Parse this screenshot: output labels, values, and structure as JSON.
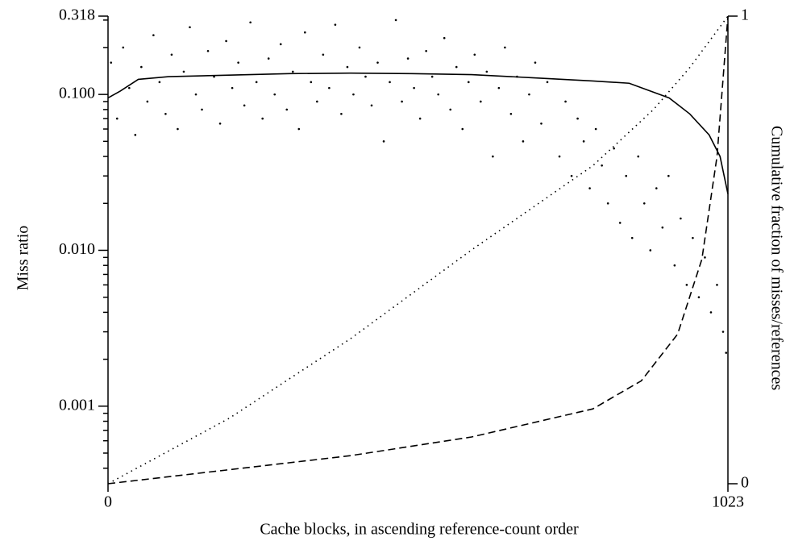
{
  "chart_data": {
    "type": "scatter",
    "xlabel": "Cache blocks, in ascending reference-count order",
    "ylabel": "Miss ratio",
    "y2label": "Cumulative fraction of misses/references",
    "xlim": [
      0,
      1023
    ],
    "xticks": [
      0,
      1023
    ],
    "ylim": [
      0.000318,
      0.318
    ],
    "yscale": "log",
    "yticks": [
      0.318,
      {
        "value": 0.1,
        "label": "0.100"
      },
      {
        "value": 0.01,
        "label": "0.010"
      },
      0.001
    ],
    "yminorticks": [
      0.3,
      0.2,
      0.09,
      0.08,
      0.07,
      0.06,
      0.05,
      0.04,
      0.03,
      0.02,
      0.009,
      0.008,
      0.007,
      0.006,
      0.005,
      0.004,
      0.003,
      0.002,
      0.0009,
      0.0008,
      0.0007,
      0.0006,
      0.0005,
      0.0004
    ],
    "y2lim": [
      0,
      1
    ],
    "y2ticks": [
      0,
      1
    ],
    "series": [
      {
        "type": "scatter",
        "color": "#000000",
        "x": [
          5,
          15,
          25,
          35,
          45,
          55,
          65,
          75,
          85,
          95,
          105,
          115,
          125,
          135,
          145,
          155,
          165,
          175,
          185,
          195,
          205,
          215,
          225,
          235,
          245,
          255,
          265,
          275,
          285,
          295,
          305,
          315,
          325,
          335,
          345,
          355,
          365,
          375,
          385,
          395,
          405,
          415,
          425,
          435,
          445,
          455,
          465,
          475,
          485,
          495,
          505,
          515,
          525,
          535,
          545,
          555,
          565,
          575,
          585,
          595,
          605,
          615,
          625,
          635,
          645,
          655,
          665,
          675,
          685,
          695,
          705,
          715,
          725,
          745,
          755,
          765,
          775,
          785,
          795,
          805,
          815,
          825,
          835,
          845,
          855,
          865,
          875,
          885,
          895,
          905,
          915,
          925,
          935,
          945,
          955,
          965,
          975,
          985,
          995,
          1005,
          1015,
          1020
        ],
        "values": [
          0.16,
          0.07,
          0.2,
          0.11,
          0.055,
          0.15,
          0.09,
          0.24,
          0.12,
          0.075,
          0.18,
          0.06,
          0.14,
          0.27,
          0.1,
          0.08,
          0.19,
          0.13,
          0.065,
          0.22,
          0.11,
          0.16,
          0.085,
          0.29,
          0.12,
          0.07,
          0.17,
          0.1,
          0.21,
          0.08,
          0.14,
          0.06,
          0.25,
          0.12,
          0.09,
          0.18,
          0.11,
          0.28,
          0.075,
          0.15,
          0.1,
          0.2,
          0.13,
          0.085,
          0.16,
          0.05,
          0.12,
          0.3,
          0.09,
          0.17,
          0.11,
          0.07,
          0.19,
          0.13,
          0.1,
          0.23,
          0.08,
          0.15,
          0.06,
          0.12,
          0.18,
          0.09,
          0.14,
          0.04,
          0.11,
          0.2,
          0.075,
          0.13,
          0.05,
          0.1,
          0.16,
          0.065,
          0.12,
          0.04,
          0.09,
          0.03,
          0.07,
          0.05,
          0.025,
          0.06,
          0.035,
          0.02,
          0.045,
          0.015,
          0.03,
          0.012,
          0.04,
          0.02,
          0.01,
          0.025,
          0.014,
          0.03,
          0.008,
          0.016,
          0.006,
          0.012,
          0.005,
          0.009,
          0.004,
          0.006,
          0.003,
          0.0022
        ]
      },
      {
        "type": "line",
        "style": "solid",
        "color": "#000000",
        "x": [
          0,
          20,
          50,
          100,
          200,
          300,
          400,
          500,
          600,
          700,
          800,
          860,
          926,
          960,
          992,
          1010,
          1023
        ],
        "values": [
          0.095,
          0.105,
          0.125,
          0.13,
          0.133,
          0.136,
          0.137,
          0.136,
          0.134,
          0.128,
          0.122,
          0.118,
          0.095,
          0.075,
          0.055,
          0.04,
          0.023
        ]
      },
      {
        "type": "line",
        "style": "dotted",
        "axis": "y2",
        "color": "#000000",
        "x": [
          0,
          200,
          400,
          600,
          800,
          900,
          960,
          1023
        ],
        "values": [
          0,
          0.14,
          0.31,
          0.5,
          0.68,
          0.8,
          0.89,
          1
        ]
      },
      {
        "type": "line",
        "style": "dashed",
        "axis": "y2",
        "color": "#000000",
        "x": [
          0,
          400,
          600,
          800,
          880,
          940,
          980,
          1005,
          1023
        ],
        "values": [
          0,
          0.06,
          0.1,
          0.16,
          0.22,
          0.32,
          0.48,
          0.7,
          1
        ]
      }
    ]
  }
}
